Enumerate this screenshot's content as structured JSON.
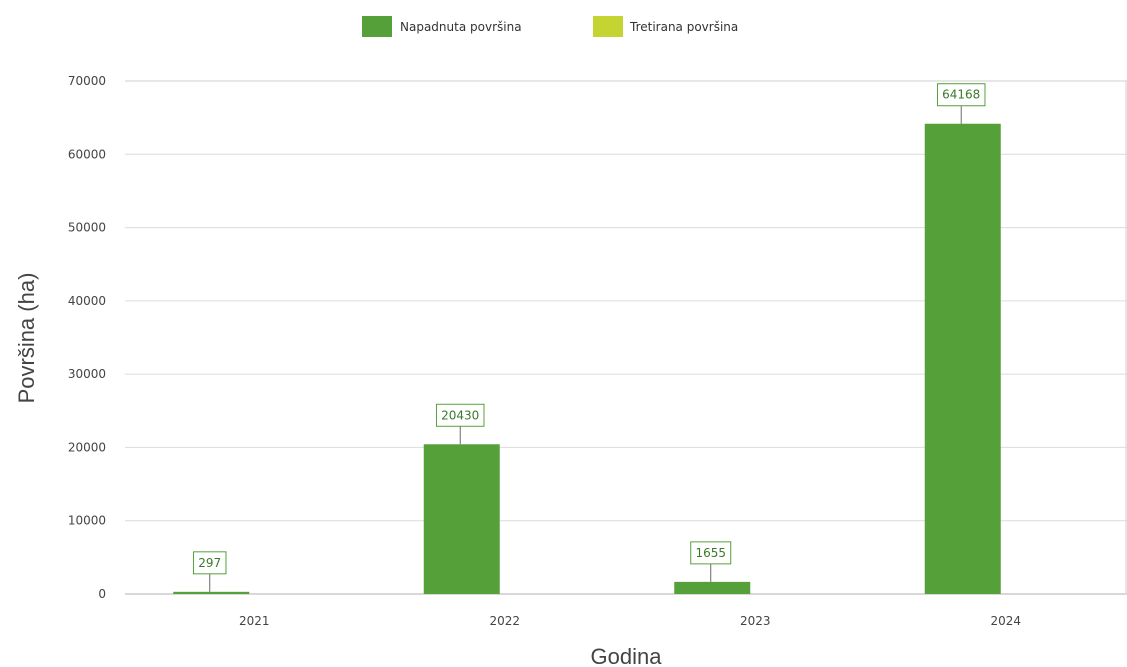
{
  "chart_data": {
    "type": "bar",
    "categories": [
      "2021",
      "2022",
      "2023",
      "2024"
    ],
    "series": [
      {
        "name": "Napadnuta površina",
        "color": "#56a03a",
        "values": [
          297,
          20430,
          1655,
          64168
        ]
      },
      {
        "name": "Tretirana površina",
        "color": "#c6d433",
        "values": [
          0,
          0,
          0,
          0
        ]
      }
    ],
    "data_labels": [
      "297",
      "20430",
      "1655",
      "64168"
    ],
    "xlabel": "Godina",
    "ylabel": "Površina (ha)",
    "ylim": [
      0,
      70000
    ],
    "yticks": [
      "0",
      "10000",
      "20000",
      "30000",
      "40000",
      "50000",
      "60000",
      "70000"
    ],
    "grid": true,
    "legend_position": "top-center"
  }
}
